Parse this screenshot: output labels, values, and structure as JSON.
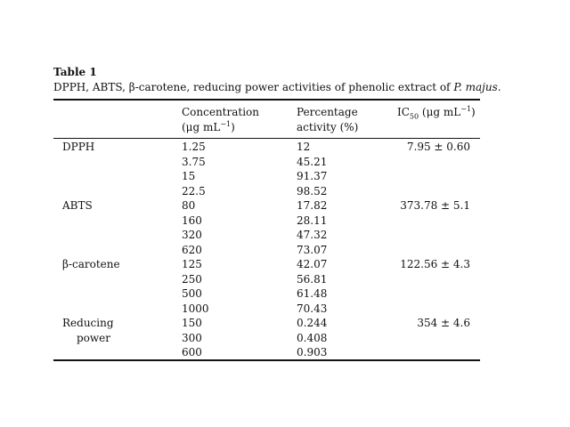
{
  "table": {
    "title": "Table 1",
    "caption_prefix": "DPPH, ABTS, β-carotene, reducing power activities of phenolic extract of ",
    "caption_species": "P. majus",
    "caption_suffix": ".",
    "headers": {
      "concentration_line1": "Concentration",
      "concentration_line2": "(μg mL",
      "concentration_sup": "−1",
      "concentration_close": ")",
      "percentage_line1": "Percentage",
      "percentage_line2": "activity (%)",
      "ic50_ic": "IC",
      "ic50_sub": "50",
      "ic50_unit": " (μg mL",
      "ic50_sup": "−1",
      "ic50_close": ")"
    },
    "rows": [
      {
        "label": "DPPH",
        "conc": "1.25",
        "pct": "12",
        "ic50": "7.95 ± 0.60"
      },
      {
        "label": "",
        "conc": "3.75",
        "pct": "45.21",
        "ic50": ""
      },
      {
        "label": "",
        "conc": "15",
        "pct": "91.37",
        "ic50": ""
      },
      {
        "label": "",
        "conc": "22.5",
        "pct": "98.52",
        "ic50": ""
      },
      {
        "label": "ABTS",
        "conc": "80",
        "pct": "17.82",
        "ic50": "373.78 ± 5.1"
      },
      {
        "label": "",
        "conc": "160",
        "pct": "28.11",
        "ic50": ""
      },
      {
        "label": "",
        "conc": "320",
        "pct": "47.32",
        "ic50": ""
      },
      {
        "label": "",
        "conc": "620",
        "pct": "73.07",
        "ic50": ""
      },
      {
        "label": "β-carotene",
        "conc": "125",
        "pct": "42.07",
        "ic50": "122.56 ± 4.3"
      },
      {
        "label": "",
        "conc": "250",
        "pct": "56.81",
        "ic50": ""
      },
      {
        "label": "",
        "conc": "500",
        "pct": "61.48",
        "ic50": ""
      },
      {
        "label": "",
        "conc": "1000",
        "pct": "70.43",
        "ic50": ""
      },
      {
        "label": "Reducing",
        "conc": "150",
        "pct": "0.244",
        "ic50": "354 ± 4.6"
      },
      {
        "label": "power",
        "conc": "300",
        "pct": "0.408",
        "ic50": ""
      },
      {
        "label": "",
        "conc": "600",
        "pct": "0.903",
        "ic50": ""
      }
    ]
  }
}
